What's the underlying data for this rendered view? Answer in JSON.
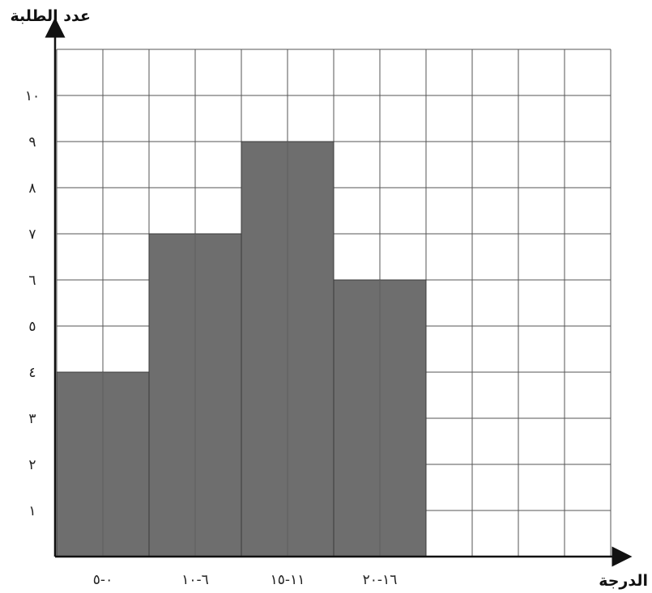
{
  "chart_data": {
    "type": "bar",
    "title": "",
    "ylabel": "عدد الطلبة",
    "xlabel": "الدرجة",
    "categories": [
      "٠-٥",
      "٦-١٠",
      "١١-١٥",
      "١٦-٢٠"
    ],
    "series": [
      {
        "values": [
          4,
          7,
          9,
          6
        ]
      }
    ],
    "yticks": [
      "١",
      "٢",
      "٣",
      "٤",
      "٥",
      "٦",
      "٧",
      "٨",
      "٩",
      "١٠"
    ],
    "ylim": [
      0,
      11
    ],
    "grid": true,
    "grid_columns": 12,
    "bar_color": "#6e6e6e",
    "grid_color": "#555555"
  }
}
